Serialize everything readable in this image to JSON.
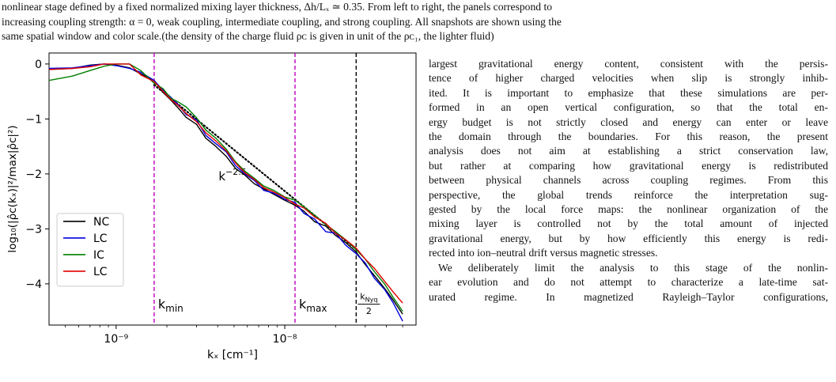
{
  "caption": {
    "lines": [
      "nonlinear stage defined by a fixed normalized mixing layer thickness, Δh/Lₓ ≃ 0.35. From left to right, the panels correspond to",
      "increasing coupling strength: α = 0, weak coupling, intermediate coupling, and strong coupling. All snapshots are shown using the",
      "same spatial window and color scale.(the density of the charge fluid ρᴄ is given in unit of the ρᴄ₁, the lighter fluid)"
    ]
  },
  "body_text": {
    "paragraph1_lines": [
      "largest gravitational energy content, consistent with the persis-",
      "tence of higher charged velocities when slip is strongly inhib-",
      "ited. It is important to emphasize that these simulations are per-",
      "formed in an open vertical configuration, so that the total en-",
      "ergy budget is not strictly closed and energy can enter or leave",
      "the domain through the boundaries. For this reason, the present",
      "analysis does not aim at establishing a strict conservation law,",
      "but rather at comparing how gravitational energy is redistributed",
      "between physical channels across coupling regimes. From this",
      "perspective, the global trends reinforce the interpretation sug-",
      "gested by the local force maps: the nonlinear organization of the",
      "mixing layer is controlled not by the total amount of injected",
      "gravitational energy, but by how efficiently this energy is redi-",
      "rected into ion–neutral drift versus magnetic stresses."
    ],
    "paragraph2_lines": [
      "We deliberately limit the analysis to this stage of the nonlin-",
      "ear evolution and do not attempt to characterize a late-time sat-",
      "urated regime. In magnetized Rayleigh–Taylor configurations,"
    ]
  },
  "chart_data": {
    "type": "line",
    "xscale": "log",
    "xlim": [
      4e-10,
      6e-08
    ],
    "ylim": [
      -4.75,
      0.2
    ],
    "xlabel": "kₓ [cm⁻¹]",
    "ylabel": "log₁₀(|ρ̂ᴄ(kₓ)|²/max|ρ̂ᴄ|²)",
    "xticks": [
      {
        "value": 1e-09,
        "label": "10⁻⁹"
      },
      {
        "value": 1e-08,
        "label": "10⁻⁸"
      }
    ],
    "yticks": [
      {
        "value": 0,
        "label": "0"
      },
      {
        "value": -1,
        "label": "−1"
      },
      {
        "value": -2,
        "label": "−2"
      },
      {
        "value": -3,
        "label": "−3"
      },
      {
        "value": -4,
        "label": "−4"
      }
    ],
    "grid": false,
    "legend_position": "lower-left",
    "vlines": [
      {
        "x": 1.68e-09,
        "label": "k_min",
        "color": "#c000c0",
        "style": "dashed"
      },
      {
        "x": 1.15e-08,
        "label": "k_max",
        "color": "#c000c0",
        "style": "dashed"
      },
      {
        "x": 2.65e-08,
        "label": "k_Nyq/2",
        "color": "#000000",
        "style": "dashed"
      }
    ],
    "labels": {
      "kmin": "k",
      "kmin_sub": "min",
      "kmax": "k",
      "kmax_sub": "max",
      "knyq_num": "k",
      "knyq_num_sub": "Nyq",
      "knyq_den": "2"
    },
    "reference": {
      "label_base": "k",
      "label_exp": "−2.5",
      "slope": -2.5,
      "color": "#000000",
      "style": "dotted",
      "points": [
        [
          1.68e-09,
          -0.38
        ],
        [
          2.65e-08,
          -3.37
        ]
      ]
    },
    "series": [
      {
        "name": "NC",
        "color": "#000000",
        "points": [
          [
            4e-10,
            -0.1
          ],
          [
            5.5e-10,
            -0.08
          ],
          [
            7e-10,
            -0.02
          ],
          [
            8.5e-10,
            0.0
          ],
          [
            1e-09,
            -0.02
          ],
          [
            1.2e-09,
            -0.07
          ],
          [
            1.4e-09,
            -0.18
          ],
          [
            1.68e-09,
            -0.3
          ],
          [
            1.9e-09,
            -0.52
          ],
          [
            2.1e-09,
            -0.65
          ],
          [
            2.3e-09,
            -0.78
          ],
          [
            2.6e-09,
            -0.97
          ],
          [
            3e-09,
            -1.1
          ],
          [
            3.4e-09,
            -1.35
          ],
          [
            3.9e-09,
            -1.5
          ],
          [
            4.5e-09,
            -1.68
          ],
          [
            5.1e-09,
            -1.9
          ],
          [
            5.8e-09,
            -2.02
          ],
          [
            6.6e-09,
            -2.18
          ],
          [
            7.5e-09,
            -2.27
          ],
          [
            8.6e-09,
            -2.37
          ],
          [
            1e-08,
            -2.48
          ],
          [
            1.15e-08,
            -2.57
          ],
          [
            1.3e-08,
            -2.68
          ],
          [
            1.5e-08,
            -2.87
          ],
          [
            1.75e-08,
            -2.95
          ],
          [
            2e-08,
            -3.12
          ],
          [
            2.3e-08,
            -3.25
          ],
          [
            2.65e-08,
            -3.42
          ],
          [
            3e-08,
            -3.65
          ],
          [
            3.4e-08,
            -3.85
          ],
          [
            3.9e-08,
            -4.08
          ],
          [
            4.4e-08,
            -4.3
          ],
          [
            5e-08,
            -4.55
          ]
        ]
      },
      {
        "name": "LC",
        "color": "#0000e0",
        "points": [
          [
            4e-10,
            -0.08
          ],
          [
            5.5e-10,
            -0.07
          ],
          [
            7e-10,
            -0.03
          ],
          [
            8.5e-10,
            0.0
          ],
          [
            1e-09,
            -0.03
          ],
          [
            1.2e-09,
            -0.08
          ],
          [
            1.4e-09,
            -0.15
          ],
          [
            1.68e-09,
            -0.3
          ],
          [
            1.9e-09,
            -0.48
          ],
          [
            2.1e-09,
            -0.6
          ],
          [
            2.3e-09,
            -0.72
          ],
          [
            2.6e-09,
            -0.92
          ],
          [
            3e-09,
            -1.02
          ],
          [
            3.4e-09,
            -1.3
          ],
          [
            3.9e-09,
            -1.45
          ],
          [
            4.5e-09,
            -1.6
          ],
          [
            5.1e-09,
            -1.85
          ],
          [
            5.8e-09,
            -2.0
          ],
          [
            6.6e-09,
            -2.12
          ],
          [
            7.5e-09,
            -2.3
          ],
          [
            8.6e-09,
            -2.35
          ],
          [
            1e-08,
            -2.46
          ],
          [
            1.15e-08,
            -2.52
          ],
          [
            1.3e-08,
            -2.72
          ],
          [
            1.5e-08,
            -2.82
          ],
          [
            1.75e-08,
            -3.05
          ],
          [
            2e-08,
            -3.08
          ],
          [
            2.3e-08,
            -3.3
          ],
          [
            2.65e-08,
            -3.45
          ],
          [
            3e-08,
            -3.62
          ],
          [
            3.4e-08,
            -3.9
          ],
          [
            3.9e-08,
            -4.1
          ],
          [
            4.4e-08,
            -4.35
          ],
          [
            5e-08,
            -4.68
          ]
        ]
      },
      {
        "name": "IC",
        "color": "#008000",
        "points": [
          [
            4e-10,
            -0.3
          ],
          [
            5.5e-10,
            -0.22
          ],
          [
            7e-10,
            -0.12
          ],
          [
            8.5e-10,
            -0.04
          ],
          [
            1e-09,
            0.0
          ],
          [
            1.2e-09,
            0.0
          ],
          [
            1.4e-09,
            -0.12
          ],
          [
            1.68e-09,
            -0.35
          ],
          [
            1.9e-09,
            -0.45
          ],
          [
            2.1e-09,
            -0.62
          ],
          [
            2.3e-09,
            -0.68
          ],
          [
            2.6e-09,
            -0.78
          ],
          [
            3e-09,
            -0.98
          ],
          [
            3.4e-09,
            -1.2
          ],
          [
            3.9e-09,
            -1.35
          ],
          [
            4.5e-09,
            -1.55
          ],
          [
            5.1e-09,
            -1.78
          ],
          [
            5.8e-09,
            -1.95
          ],
          [
            6.6e-09,
            -2.08
          ],
          [
            7.5e-09,
            -2.22
          ],
          [
            8.6e-09,
            -2.3
          ],
          [
            1e-08,
            -2.42
          ],
          [
            1.15e-08,
            -2.48
          ],
          [
            1.3e-08,
            -2.6
          ],
          [
            1.5e-08,
            -2.75
          ],
          [
            1.75e-08,
            -2.92
          ],
          [
            2e-08,
            -3.05
          ],
          [
            2.3e-08,
            -3.2
          ],
          [
            2.65e-08,
            -3.38
          ],
          [
            3e-08,
            -3.55
          ],
          [
            3.4e-08,
            -3.78
          ],
          [
            3.9e-08,
            -4.0
          ],
          [
            4.4e-08,
            -4.25
          ],
          [
            5e-08,
            -4.5
          ]
        ]
      },
      {
        "name": "LC",
        "color": "#e00000",
        "points": [
          [
            4e-10,
            -0.1
          ],
          [
            5.5e-10,
            -0.08
          ],
          [
            7e-10,
            -0.05
          ],
          [
            8.5e-10,
            0.0
          ],
          [
            1e-09,
            0.0
          ],
          [
            1.2e-09,
            0.0
          ],
          [
            1.4e-09,
            -0.2
          ],
          [
            1.68e-09,
            -0.32
          ],
          [
            1.9e-09,
            -0.5
          ],
          [
            2.1e-09,
            -0.64
          ],
          [
            2.3e-09,
            -0.74
          ],
          [
            2.6e-09,
            -0.9
          ],
          [
            3e-09,
            -1.05
          ],
          [
            3.4e-09,
            -1.25
          ],
          [
            3.9e-09,
            -1.4
          ],
          [
            4.5e-09,
            -1.58
          ],
          [
            5.1e-09,
            -1.8
          ],
          [
            5.8e-09,
            -1.98
          ],
          [
            6.6e-09,
            -2.1
          ],
          [
            7.5e-09,
            -2.25
          ],
          [
            8.6e-09,
            -2.33
          ],
          [
            1e-08,
            -2.43
          ],
          [
            1.15e-08,
            -2.55
          ],
          [
            1.3e-08,
            -2.62
          ],
          [
            1.5e-08,
            -2.78
          ],
          [
            1.75e-08,
            -2.9
          ],
          [
            2e-08,
            -3.08
          ],
          [
            2.3e-08,
            -3.2
          ],
          [
            2.65e-08,
            -3.35
          ],
          [
            3e-08,
            -3.55
          ],
          [
            3.4e-08,
            -3.72
          ],
          [
            3.9e-08,
            -3.95
          ],
          [
            4.4e-08,
            -4.15
          ],
          [
            5e-08,
            -4.35
          ]
        ]
      }
    ]
  }
}
